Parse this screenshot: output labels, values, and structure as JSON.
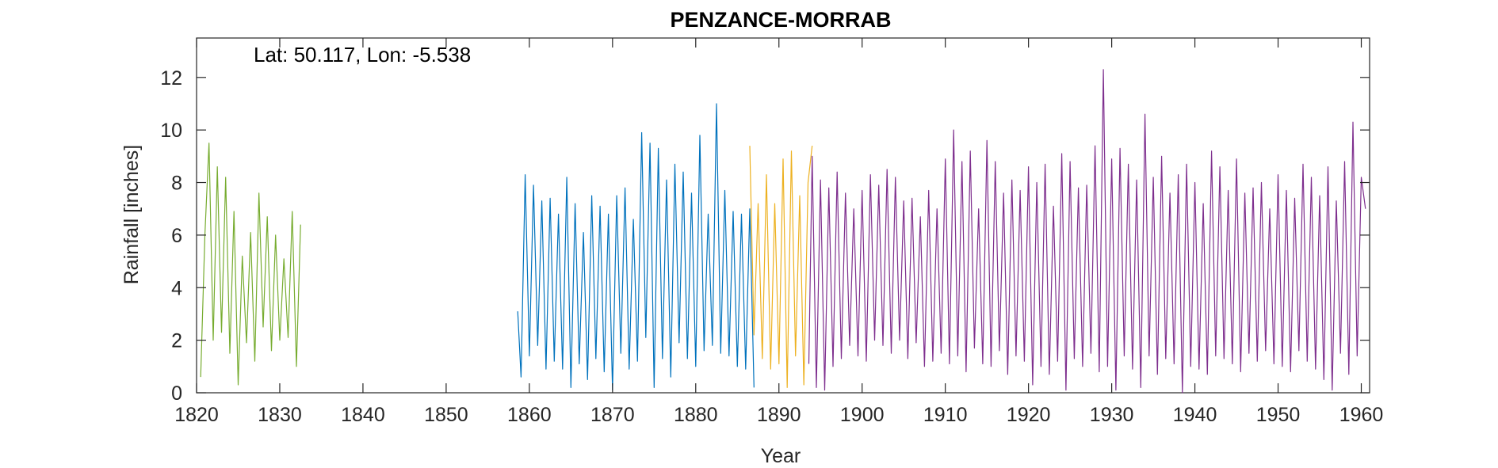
{
  "chart_data": {
    "type": "line",
    "title": "PENZANCE-MORRAB",
    "annotation": "Lat: 50.117, Lon: -5.538",
    "xlabel": "Year",
    "ylabel": "Rainfall [inches]",
    "xlim": [
      1820,
      1961
    ],
    "ylim": [
      0,
      13.5
    ],
    "xticks": [
      1820,
      1830,
      1840,
      1850,
      1860,
      1870,
      1880,
      1890,
      1900,
      1910,
      1920,
      1930,
      1940,
      1950,
      1960
    ],
    "yticks": [
      0,
      2,
      4,
      6,
      8,
      10,
      12
    ],
    "grid": false,
    "series": [
      {
        "color": "#77AC30",
        "x": [
          1820.5,
          1821.0,
          1821.5,
          1822.0,
          1822.5,
          1823.0,
          1823.5,
          1824.0,
          1824.5,
          1825.0,
          1825.5,
          1826.0,
          1826.5,
          1827.0,
          1827.5,
          1828.0,
          1828.5,
          1829.0,
          1829.5,
          1830.0,
          1830.5,
          1831.0,
          1831.5,
          1832.0,
          1832.5
        ],
        "y": [
          0.6,
          6.0,
          9.5,
          2.0,
          8.6,
          2.3,
          8.2,
          1.5,
          6.9,
          0.3,
          5.2,
          1.9,
          6.1,
          1.2,
          7.6,
          2.5,
          6.7,
          1.6,
          6.0,
          2.0,
          5.1,
          2.1,
          6.9,
          1.0,
          6.4
        ]
      },
      {
        "color": "#0072BD",
        "x": [
          1858.6,
          1859.0,
          1859.5,
          1860.0,
          1860.5,
          1861.0,
          1861.5,
          1862.0,
          1862.5,
          1863.0,
          1863.5,
          1864.0,
          1864.5,
          1865.0,
          1865.5,
          1866.0,
          1866.5,
          1867.0,
          1867.5,
          1868.0,
          1868.5,
          1869.0,
          1869.5,
          1870.0,
          1870.5,
          1871.0,
          1871.5,
          1872.0,
          1872.5,
          1873.0,
          1873.5,
          1874.0,
          1874.5,
          1875.0,
          1875.5,
          1876.0,
          1876.5,
          1877.0,
          1877.5,
          1878.0,
          1878.5,
          1879.0,
          1879.5,
          1880.0,
          1880.5,
          1881.0,
          1881.5,
          1882.0,
          1882.5,
          1883.0,
          1883.5,
          1884.0,
          1884.5,
          1885.0,
          1885.5,
          1886.0,
          1886.5,
          1887.0
        ],
        "y": [
          3.1,
          0.6,
          8.3,
          1.4,
          7.9,
          1.8,
          7.3,
          0.9,
          7.4,
          1.2,
          6.8,
          0.9,
          8.2,
          0.2,
          7.2,
          1.1,
          6.1,
          0.5,
          7.5,
          1.3,
          7.1,
          0.8,
          6.8,
          0.1,
          7.5,
          1.5,
          7.8,
          0.9,
          6.6,
          1.2,
          9.9,
          2.1,
          9.5,
          0.2,
          9.3,
          1.3,
          8.1,
          0.6,
          8.7,
          1.9,
          8.4,
          1.3,
          7.6,
          1.0,
          9.8,
          1.6,
          6.8,
          1.8,
          11.0,
          1.5,
          7.7,
          1.4,
          6.9,
          1.0,
          6.8,
          0.9,
          7.0,
          0.2
        ]
      },
      {
        "color": "#EDB120",
        "x": [
          1886.5,
          1887.0,
          1887.5,
          1888.0,
          1888.5,
          1889.0,
          1889.5,
          1890.0,
          1890.5,
          1891.0,
          1891.5,
          1892.0,
          1892.5,
          1893.0,
          1893.5,
          1894.0
        ],
        "y": [
          9.4,
          2.2,
          7.2,
          1.3,
          8.3,
          0.9,
          7.2,
          1.1,
          8.9,
          0.2,
          9.2,
          1.4,
          7.5,
          0.3,
          8.0,
          9.4
        ]
      },
      {
        "color": "#7E2F8E",
        "x": [
          1893.6,
          1894.0,
          1894.5,
          1895.0,
          1895.5,
          1896.0,
          1896.5,
          1897.0,
          1897.5,
          1898.0,
          1898.5,
          1899.0,
          1899.5,
          1900.0,
          1900.5,
          1901.0,
          1901.5,
          1902.0,
          1902.5,
          1903.0,
          1903.5,
          1904.0,
          1904.5,
          1905.0,
          1905.5,
          1906.0,
          1906.5,
          1907.0,
          1907.5,
          1908.0,
          1908.5,
          1909.0,
          1909.5,
          1910.0,
          1910.5,
          1911.0,
          1911.5,
          1912.0,
          1912.5,
          1913.0,
          1913.5,
          1914.0,
          1914.5,
          1915.0,
          1915.5,
          1916.0,
          1916.5,
          1917.0,
          1917.5,
          1918.0,
          1918.5,
          1919.0,
          1919.5,
          1920.0,
          1920.5,
          1921.0,
          1921.5,
          1922.0,
          1922.5,
          1923.0,
          1923.5,
          1924.0,
          1924.5,
          1925.0,
          1925.5,
          1926.0,
          1926.5,
          1927.0,
          1927.5,
          1928.0,
          1928.5,
          1929.0,
          1929.5,
          1930.0,
          1930.5,
          1931.0,
          1931.5,
          1932.0,
          1932.5,
          1933.0,
          1933.5,
          1934.0,
          1934.5,
          1935.0,
          1935.5,
          1936.0,
          1936.5,
          1937.0,
          1937.5,
          1938.0,
          1938.5,
          1939.0,
          1939.5,
          1940.0,
          1940.5,
          1941.0,
          1941.5,
          1942.0,
          1942.5,
          1943.0,
          1943.5,
          1944.0,
          1944.5,
          1945.0,
          1945.5,
          1946.0,
          1946.5,
          1947.0,
          1947.5,
          1948.0,
          1948.5,
          1949.0,
          1949.5,
          1950.0,
          1950.5,
          1951.0,
          1951.5,
          1952.0,
          1952.5,
          1953.0,
          1953.5,
          1954.0,
          1954.5,
          1955.0,
          1955.5,
          1956.0,
          1956.5,
          1957.0,
          1957.5,
          1958.0,
          1958.5,
          1959.0,
          1959.5,
          1960.0,
          1960.5
        ],
        "y": [
          1.1,
          9.0,
          0.2,
          8.1,
          0.1,
          7.8,
          1.0,
          8.4,
          1.3,
          7.6,
          1.8,
          7.0,
          1.4,
          7.7,
          1.2,
          8.3,
          2.0,
          7.9,
          1.8,
          8.5,
          1.5,
          8.2,
          2.0,
          7.3,
          1.3,
          7.4,
          1.9,
          6.7,
          1.0,
          7.7,
          1.2,
          7.0,
          1.5,
          8.9,
          1.1,
          10.0,
          1.4,
          8.8,
          0.8,
          9.2,
          1.7,
          7.0,
          1.1,
          9.6,
          1.0,
          8.8,
          1.6,
          7.6,
          0.7,
          8.1,
          1.4,
          7.7,
          1.2,
          8.6,
          0.3,
          8.0,
          1.0,
          8.7,
          0.7,
          7.1,
          1.2,
          9.1,
          0.1,
          8.8,
          1.3,
          7.8,
          1.0,
          7.9,
          1.5,
          9.4,
          0.8,
          12.3,
          1.0,
          8.9,
          0.1,
          9.3,
          1.4,
          8.7,
          0.9,
          8.1,
          0.2,
          10.6,
          1.4,
          8.2,
          0.7,
          9.0,
          1.3,
          7.6,
          1.1,
          8.3,
          0.0,
          8.7,
          1.0,
          8.0,
          0.9,
          7.2,
          0.7,
          9.2,
          1.4,
          8.6,
          1.3,
          7.7,
          1.1,
          8.9,
          0.8,
          7.6,
          1.5,
          7.8,
          1.2,
          8.0,
          1.6,
          7.0,
          1.1,
          8.3,
          1.0,
          7.7,
          0.8,
          7.4,
          1.6,
          8.7,
          1.2,
          8.2,
          0.9,
          7.5,
          0.5,
          8.6,
          0.1,
          7.3,
          1.5,
          8.8,
          0.7,
          10.3,
          1.4,
          8.2,
          7.0
        ]
      }
    ]
  }
}
